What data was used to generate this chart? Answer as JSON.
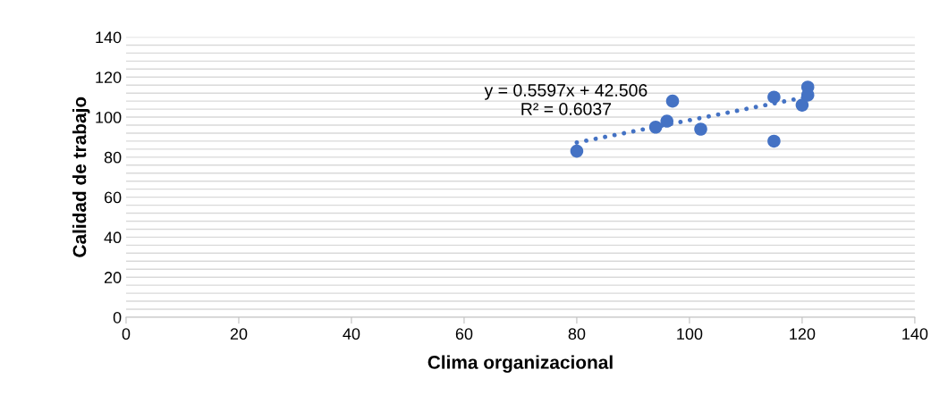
{
  "chart_data": {
    "type": "scatter",
    "xlabel": "Clima organizacional",
    "ylabel": "Calidad de trabajo",
    "xlim": [
      0,
      140
    ],
    "xticks": [
      0,
      20,
      40,
      60,
      80,
      100,
      120,
      140
    ],
    "ylim": [
      0,
      140
    ],
    "yticks": [
      0,
      {
        "value": 4,
        "label": null
      },
      {
        "value": 8,
        "label": null
      },
      {
        "value": 12,
        "label": null
      },
      {
        "value": 16,
        "label": null
      },
      20,
      {
        "value": 24,
        "label": null
      },
      {
        "value": 28,
        "label": null
      },
      {
        "value": 32,
        "label": null
      },
      {
        "value": 36,
        "label": null
      },
      40,
      {
        "value": 44,
        "label": null
      },
      {
        "value": 48,
        "label": null
      },
      {
        "value": 52,
        "label": null
      },
      {
        "value": 56,
        "label": null
      },
      60,
      {
        "value": 64,
        "label": null
      },
      {
        "value": 68,
        "label": null
      },
      {
        "value": 72,
        "label": null
      },
      {
        "value": 76,
        "label": null
      },
      80,
      {
        "value": 84,
        "label": null
      },
      {
        "value": 88,
        "label": null
      },
      {
        "value": 92,
        "label": null
      },
      {
        "value": 96,
        "label": null
      },
      100,
      {
        "value": 104,
        "label": null
      },
      {
        "value": 108,
        "label": null
      },
      {
        "value": 112,
        "label": null
      },
      {
        "value": 116,
        "label": null
      },
      120,
      {
        "value": 124,
        "label": null
      },
      {
        "value": 128,
        "label": null
      },
      {
        "value": 132,
        "label": null
      },
      {
        "value": 136,
        "label": null
      },
      140
    ],
    "grid": "y",
    "marker": "circle",
    "series": [
      {
        "color": "#4472c4",
        "x": [
          80,
          94,
          96,
          97,
          102,
          115,
          115,
          120,
          121,
          121
        ],
        "values": [
          83,
          95,
          98,
          108,
          94,
          110,
          88,
          106,
          115,
          111
        ]
      },
      {
        "type": "line",
        "color": "#4472c4",
        "line_style": "dotted",
        "marker": "none",
        "x": [
          80,
          121
        ],
        "values": [
          87.3,
          110.2
        ]
      }
    ],
    "annotations": [
      {
        "text": "y = 0.5597x + 42.506\nR² = 0.6037",
        "x": 97,
        "y": 108
      }
    ]
  }
}
